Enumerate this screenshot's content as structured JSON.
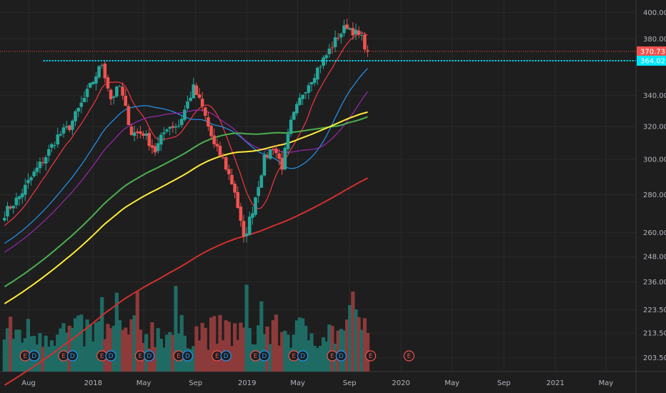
{
  "chart_data": {
    "type": "candlestick",
    "y_scale": "log",
    "ylim": [
      198,
      410
    ],
    "y_ticks": [
      "400.00",
      "380.00",
      "340.00",
      "320.00",
      "300.00",
      "280.00",
      "260.00",
      "248.00",
      "236.00",
      "223.50",
      "213.50",
      "203.50"
    ],
    "y_tick_values": [
      400,
      380,
      340,
      320,
      300,
      280,
      260,
      248,
      236,
      223.5,
      213.5,
      203.5
    ],
    "x_ticks": [
      {
        "label": "Aug",
        "date": "2017-08-01"
      },
      {
        "label": "2018",
        "date": "2018-01-01"
      },
      {
        "label": "May",
        "date": "2018-05-01"
      },
      {
        "label": "Sep",
        "date": "2018-09-01"
      },
      {
        "label": "2019",
        "date": "2019-01-01"
      },
      {
        "label": "May",
        "date": "2019-05-01"
      },
      {
        "label": "Sep",
        "date": "2019-09-01"
      },
      {
        "label": "2020",
        "date": "2020-01-01"
      },
      {
        "label": "May",
        "date": "2020-05-01"
      },
      {
        "label": "Sep",
        "date": "2020-09-01"
      },
      {
        "label": "2021",
        "date": "2021-01-01"
      },
      {
        "label": "May",
        "date": "2021-05-01"
      }
    ],
    "close_anchors": [
      {
        "date": "2017-06-05",
        "close": 270
      },
      {
        "date": "2017-07-10",
        "close": 279
      },
      {
        "date": "2017-08-14",
        "close": 292
      },
      {
        "date": "2017-09-11",
        "close": 302
      },
      {
        "date": "2017-10-09",
        "close": 314
      },
      {
        "date": "2017-11-06",
        "close": 320
      },
      {
        "date": "2017-12-11",
        "close": 338
      },
      {
        "date": "2018-01-22",
        "close": 362
      },
      {
        "date": "2018-02-12",
        "close": 338
      },
      {
        "date": "2018-03-05",
        "close": 346
      },
      {
        "date": "2018-04-02",
        "close": 316
      },
      {
        "date": "2018-04-30",
        "close": 316
      },
      {
        "date": "2018-05-28",
        "close": 305
      },
      {
        "date": "2018-06-25",
        "close": 320
      },
      {
        "date": "2018-07-23",
        "close": 321
      },
      {
        "date": "2018-08-27",
        "close": 345
      },
      {
        "date": "2018-09-17",
        "close": 332
      },
      {
        "date": "2018-10-15",
        "close": 308
      },
      {
        "date": "2018-11-05",
        "close": 300
      },
      {
        "date": "2018-12-03",
        "close": 282
      },
      {
        "date": "2018-12-24",
        "close": 256
      },
      {
        "date": "2019-01-14",
        "close": 272
      },
      {
        "date": "2019-02-11",
        "close": 300
      },
      {
        "date": "2019-03-04",
        "close": 308
      },
      {
        "date": "2019-03-25",
        "close": 296
      },
      {
        "date": "2019-04-15",
        "close": 322
      },
      {
        "date": "2019-05-13",
        "close": 342
      },
      {
        "date": "2019-06-10",
        "close": 355
      },
      {
        "date": "2019-07-08",
        "close": 368
      },
      {
        "date": "2019-08-05",
        "close": 382
      },
      {
        "date": "2019-08-26",
        "close": 390
      },
      {
        "date": "2019-09-09",
        "close": 386
      },
      {
        "date": "2019-09-30",
        "close": 380
      },
      {
        "date": "2019-10-14",
        "close": 370.73
      }
    ],
    "moving_averages": [
      {
        "period": 10,
        "color": "#f23645"
      },
      {
        "period": 30,
        "color": "#2196f3"
      },
      {
        "period": 40,
        "color": "#9c27b0"
      },
      {
        "period": 80,
        "color": "#4caf50"
      },
      {
        "period": 100,
        "color": "#ffeb3b"
      },
      {
        "period": 200,
        "color": "#d32f2f"
      }
    ],
    "levels": [
      {
        "value": 370.73,
        "label": "370.73",
        "line_color": "#ef5350",
        "style": "dotted",
        "box_color": "#ef5350"
      },
      {
        "value": 364.02,
        "label": "364.02",
        "line_color": "#00e5ff",
        "style": "dotted",
        "box_color": "#00e5ff",
        "start_date": "2017-09-05"
      }
    ],
    "events": [
      {
        "date": "2017-07-24",
        "letter": "E",
        "kind": "earnings"
      },
      {
        "date": "2017-08-14",
        "letter": "D",
        "kind": "dividend"
      },
      {
        "date": "2017-10-23",
        "letter": "E",
        "kind": "earnings"
      },
      {
        "date": "2017-11-13",
        "letter": "D",
        "kind": "dividend"
      },
      {
        "date": "2018-01-22",
        "letter": "E",
        "kind": "earnings"
      },
      {
        "date": "2018-02-12",
        "letter": "D",
        "kind": "dividend"
      },
      {
        "date": "2018-04-23",
        "letter": "E",
        "kind": "earnings"
      },
      {
        "date": "2018-05-14",
        "letter": "D",
        "kind": "dividend"
      },
      {
        "date": "2018-07-23",
        "letter": "E",
        "kind": "earnings"
      },
      {
        "date": "2018-08-13",
        "letter": "D",
        "kind": "dividend"
      },
      {
        "date": "2018-10-22",
        "letter": "E",
        "kind": "earnings"
      },
      {
        "date": "2018-11-12",
        "letter": "D",
        "kind": "dividend"
      },
      {
        "date": "2019-01-21",
        "letter": "E",
        "kind": "earnings"
      },
      {
        "date": "2019-02-11",
        "letter": "D",
        "kind": "dividend"
      },
      {
        "date": "2019-04-22",
        "letter": "E",
        "kind": "earnings"
      },
      {
        "date": "2019-05-13",
        "letter": "D",
        "kind": "dividend"
      },
      {
        "date": "2019-07-22",
        "letter": "E",
        "kind": "earnings"
      },
      {
        "date": "2019-08-12",
        "letter": "D",
        "kind": "dividend"
      },
      {
        "date": "2019-10-21",
        "letter": "E",
        "kind": "earnings"
      },
      {
        "date": "2020-01-20",
        "letter": "E",
        "kind": "earnings"
      }
    ],
    "colors": {
      "background": "#1e1e1e",
      "grid": "#2a2a2a",
      "up": "#26a69a",
      "down": "#ef5350",
      "volume_up": "#1f6b64",
      "volume_down": "#8c3a3a",
      "earnings": "#ef5350",
      "dividend": "#2196f3",
      "axis_text": "#b2b5be"
    },
    "grid": true
  }
}
